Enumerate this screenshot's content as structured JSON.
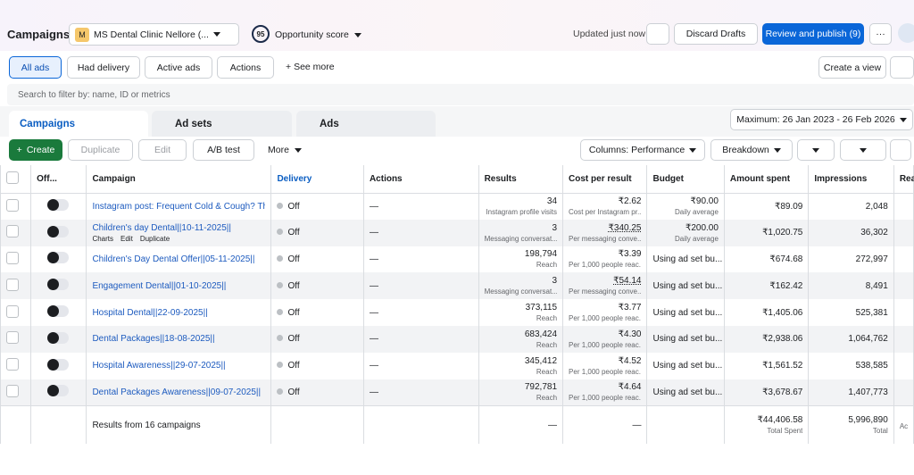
{
  "header": {
    "title": "Campaigns",
    "account_initial": "M",
    "account": "MS Dental Clinic Nellore (...",
    "score": "95",
    "score_label": "Opportunity score",
    "status": "Updated just now",
    "discard": "Discard Drafts",
    "publish": "Review and publish (9)"
  },
  "filters": {
    "all": "All ads",
    "had": "Had delivery",
    "active": "Active ads",
    "actions": "Actions",
    "more": "See more",
    "create_view": "Create a view",
    "search": "Search to filter by: name, ID or metrics"
  },
  "tabs": {
    "campaigns": "Campaigns",
    "adsets": "Ad sets",
    "ads": "Ads",
    "date": "Maximum: 26 Jan 2023 - 26 Feb 2026"
  },
  "toolbar": {
    "create": "Create",
    "duplicate": "Duplicate",
    "edit": "Edit",
    "abtest": "A/B test",
    "more": "More",
    "columns": "Columns: Performance",
    "breakdown": "Breakdown"
  },
  "table": {
    "headers": [
      "Off...",
      "Campaign",
      "Delivery",
      "Actions",
      "Results",
      "Cost per result",
      "Budget",
      "Amount spent",
      "Impressions",
      "Reach"
    ],
    "rows": [
      {
        "name": "Instagram post: Frequent Cold & Cough? The ...",
        "delivery": "Off",
        "actions": "—",
        "results": "34",
        "results_sub": "Instagram profile visits",
        "cost": "₹2.62",
        "cost_sub": "Cost per Instagram pr...",
        "budget": "₹90.00",
        "budget_sub": "Daily average",
        "amount": "₹89.09",
        "impressions": "2,048"
      },
      {
        "name": "Children's day Dental||10-11-2025||",
        "hover_actions": [
          "Charts",
          "Edit",
          "Duplicate"
        ],
        "delivery": "Off",
        "actions": "—",
        "results": "3",
        "results_sub": "Messaging conversat...",
        "cost": "₹340.25",
        "cost_sub": "Per messaging conve...",
        "budget": "₹200.00",
        "budget_sub": "Daily average",
        "amount": "₹1,020.75",
        "impressions": "36,302"
      },
      {
        "name": "Children's Day Dental Offer||05-11-2025||",
        "delivery": "Off",
        "actions": "—",
        "results": "198,794",
        "results_sub": "Reach",
        "cost": "₹3.39",
        "cost_sub": "Per 1,000 people reac...",
        "budget": "Using ad set bu...",
        "amount": "₹674.68",
        "impressions": "272,997"
      },
      {
        "name": "Engagement Dental||01-10-2025||",
        "delivery": "Off",
        "actions": "—",
        "results": "3",
        "results_sub": "Messaging conversat...",
        "cost": "₹54.14",
        "cost_sub": "Per messaging conve...",
        "budget": "Using ad set bu...",
        "amount": "₹162.42",
        "impressions": "8,491"
      },
      {
        "name": "Hospital Dental||22-09-2025||",
        "delivery": "Off",
        "actions": "—",
        "results": "373,115",
        "results_sub": "Reach",
        "cost": "₹3.77",
        "cost_sub": "Per 1,000 people reac...",
        "budget": "Using ad set bu...",
        "amount": "₹1,405.06",
        "impressions": "525,381"
      },
      {
        "name": "Dental Packages||18-08-2025||",
        "delivery": "Off",
        "actions": "—",
        "results": "683,424",
        "results_sub": "Reach",
        "cost": "₹4.30",
        "cost_sub": "Per 1,000 people reac...",
        "budget": "Using ad set bu...",
        "amount": "₹2,938.06",
        "impressions": "1,064,762"
      },
      {
        "name": "Hospital Awareness||29-07-2025||",
        "delivery": "Off",
        "actions": "—",
        "results": "345,412",
        "results_sub": "Reach",
        "cost": "₹4.52",
        "cost_sub": "Per 1,000 people reac...",
        "budget": "Using ad set bu...",
        "amount": "₹1,561.52",
        "impressions": "538,585"
      },
      {
        "name": "Dental Packages Awareness||09-07-2025||",
        "delivery": "Off",
        "actions": "—",
        "results": "792,781",
        "results_sub": "Reach",
        "cost": "₹4.64",
        "cost_sub": "Per 1,000 people reac...",
        "budget": "Using ad set bu...",
        "amount": "₹3,678.67",
        "impressions": "1,407,773"
      }
    ],
    "footer": {
      "label": "Results from 16 campaigns",
      "results": "—",
      "cost": "—",
      "amount": "₹44,406.58",
      "amount_sub": "Total Spent",
      "impressions": "5,996,890",
      "impressions_sub": "Total",
      "reach": "Accou"
    }
  }
}
